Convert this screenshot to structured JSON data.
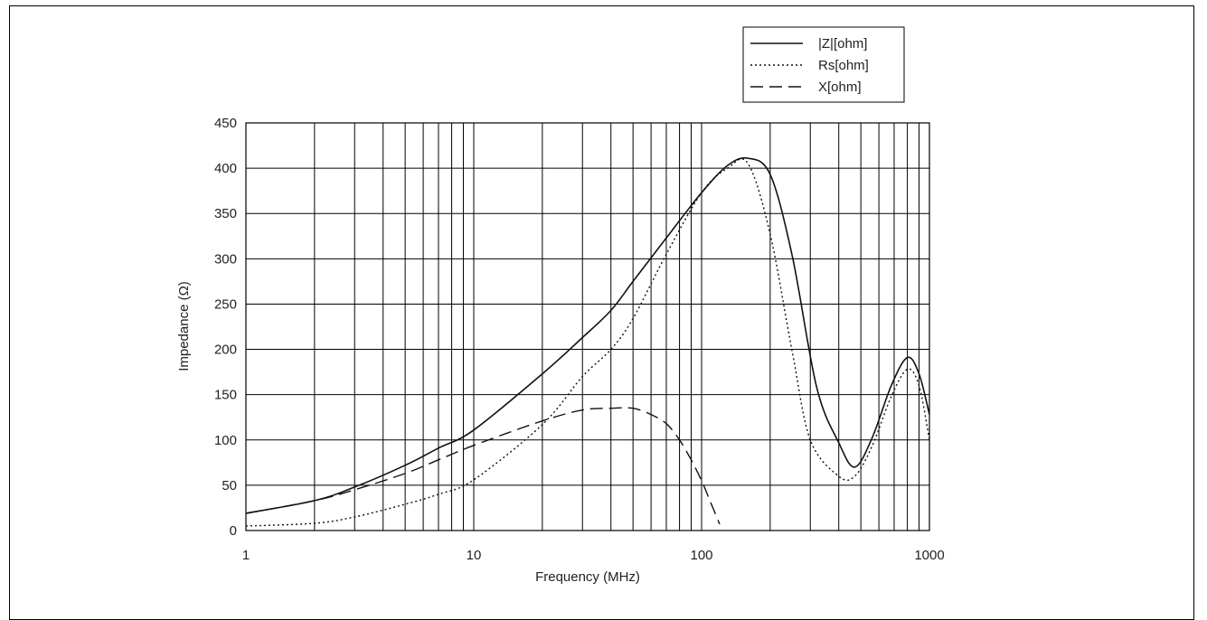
{
  "chart_data": {
    "type": "line",
    "xscale": "log",
    "xlim": [
      1,
      1000
    ],
    "ylim": [
      0,
      450
    ],
    "xlabel": "Frequency (MHz)",
    "ylabel": "Impedance (Ω)",
    "xticks": [
      "1",
      "10",
      "100",
      "1000"
    ],
    "yticks": [
      "0",
      "50",
      "100",
      "150",
      "200",
      "250",
      "300",
      "350",
      "400",
      "450"
    ],
    "grid": true,
    "legend_position": "top-right",
    "series": [
      {
        "name": "|Z|[ohm]",
        "style": "solid",
        "x": [
          1,
          2,
          3,
          5,
          7,
          10,
          20,
          30,
          40,
          50,
          70,
          100,
          130,
          160,
          200,
          250,
          320,
          400,
          470,
          560,
          680,
          800,
          900,
          1000
        ],
        "y": [
          19,
          33,
          48,
          72,
          91,
          111,
          173,
          213,
          243,
          275,
          323,
          373,
          403,
          411,
          393,
          303,
          158,
          97,
          70,
          102,
          160,
          191,
          173,
          128
        ]
      },
      {
        "name": "Rs[ohm]",
        "style": "dotted",
        "x": [
          1,
          2,
          3,
          5,
          7,
          10,
          20,
          30,
          40,
          50,
          70,
          100,
          130,
          160,
          200,
          250,
          300,
          400,
          470,
          560,
          680,
          800,
          900,
          1000
        ],
        "y": [
          5,
          8,
          15,
          29,
          40,
          56,
          117,
          170,
          200,
          234,
          305,
          373,
          400,
          405,
          327,
          197,
          100,
          60,
          60,
          93,
          148,
          178,
          160,
          100
        ]
      },
      {
        "name": "X[ohm]",
        "style": "dashed",
        "x": [
          1,
          2,
          3,
          5,
          7,
          10,
          20,
          30,
          40,
          50,
          60,
          70,
          80,
          90,
          100,
          110,
          120
        ],
        "y": [
          19,
          33,
          45,
          63,
          78,
          94,
          121,
          133,
          135,
          135,
          128,
          118,
          100,
          78,
          55,
          30,
          7
        ]
      }
    ]
  }
}
